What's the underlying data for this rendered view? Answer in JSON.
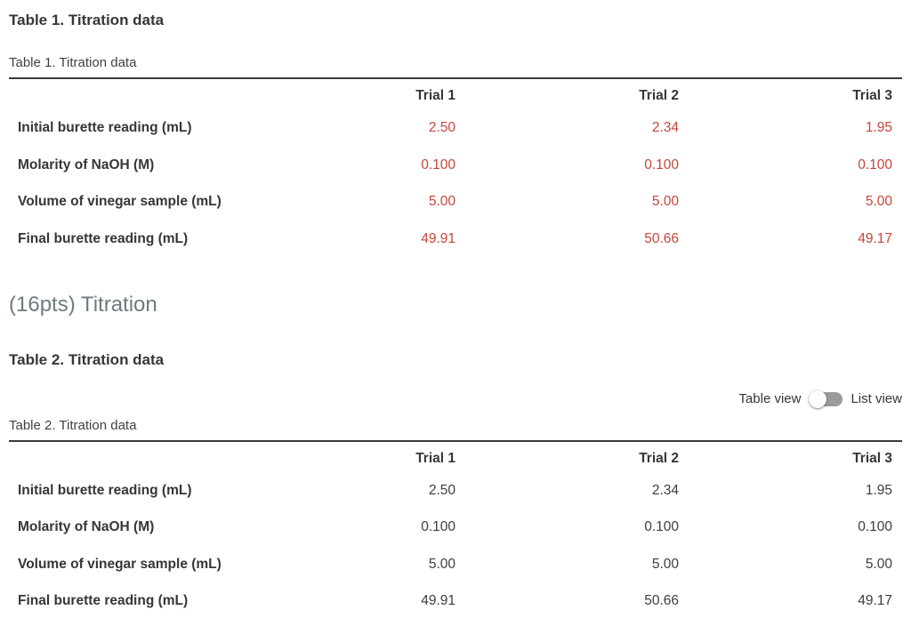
{
  "section1": {
    "title": "Table 1. Titration data",
    "table": {
      "caption": "Table 1. Titration data",
      "columns": [
        "Trial 1",
        "Trial 2",
        "Trial 3"
      ],
      "rows": [
        {
          "label": "Initial burette reading (mL)",
          "values": [
            "2.50",
            "2.34",
            "1.95"
          ]
        },
        {
          "label": "Molarity of NaOH (M)",
          "values": [
            "0.100",
            "0.100",
            "0.100"
          ]
        },
        {
          "label": "Volume of vinegar sample (mL)",
          "values": [
            "5.00",
            "5.00",
            "5.00"
          ]
        },
        {
          "label": "Final burette reading (mL)",
          "values": [
            "49.91",
            "50.66",
            "49.17"
          ]
        }
      ],
      "values_color": "#c7453a"
    }
  },
  "question_heading": "(16pts) Titration",
  "section2": {
    "title": "Table 2. Titration data",
    "view_toggle": {
      "table_label": "Table view",
      "list_label": "List view",
      "selected": "Table view",
      "track_color": "#9b9b9b",
      "knob_color": "#fdfdfd"
    },
    "table": {
      "caption": "Table 2. Titration data",
      "columns": [
        "Trial 1",
        "Trial 2",
        "Trial 3"
      ],
      "rows": [
        {
          "label": "Initial burette reading (mL)",
          "values": [
            "2.50",
            "2.34",
            "1.95"
          ]
        },
        {
          "label": "Molarity of NaOH (M)",
          "values": [
            "0.100",
            "0.100",
            "0.100"
          ]
        },
        {
          "label": "Volume of vinegar sample (mL)",
          "values": [
            "5.00",
            "5.00",
            "5.00"
          ]
        },
        {
          "label": "Final burette reading (mL)",
          "values": [
            "49.91",
            "50.66",
            "49.17"
          ]
        }
      ],
      "values_color": "#3d3d3d"
    }
  },
  "colors": {
    "entered_value_red": "#c7453a",
    "text_dark": "#363636",
    "heading_gray": "#6e7b7e",
    "table_border": "#3a3a3a"
  }
}
